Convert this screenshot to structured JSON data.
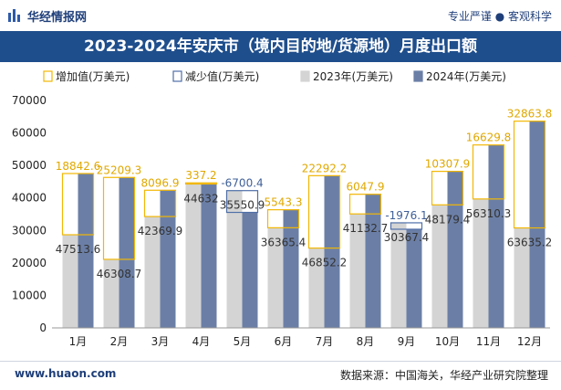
{
  "header": {
    "logo_text": "华经情报网",
    "slogan": "专业严谨 ● 客观科学"
  },
  "footer": {
    "website": "www.huaon.com",
    "source": "数据来源：中国海关，华经产业研究院整理"
  },
  "colors": {
    "increase": "#f2b705",
    "decrease": "#4f6fa8",
    "bar2023": "#d4d4d4",
    "bar2024": "#6b7fa6",
    "title_bg": "#1f4e8c"
  },
  "chart_data": {
    "type": "bar",
    "title": "2023-2024年安庆市（境内目的地/货源地）月度出口额",
    "categories": [
      "1月",
      "2月",
      "3月",
      "4月",
      "5月",
      "6月",
      "7月",
      "8月",
      "9月",
      "10月",
      "11月",
      "12月"
    ],
    "ylim": [
      0,
      70000
    ],
    "yticks": [
      0,
      10000,
      20000,
      30000,
      40000,
      50000,
      60000,
      70000
    ],
    "legend": {
      "placement": "top",
      "items": [
        "增加值(万美元)",
        "减少值(万美元)",
        "2023年(万美元)",
        "2024年(万美元)"
      ]
    },
    "series": [
      {
        "name": "2023年(万美元)",
        "values": [
          28671,
          21099,
          34273,
          44295,
          42251,
          30822,
          24560,
          35085,
          32344,
          37871,
          39681,
          30771
        ]
      },
      {
        "name": "2024年(万美元)",
        "values": [
          47513.6,
          46308.7,
          42369.9,
          44632,
          35550.9,
          36365.4,
          46852.2,
          41132.7,
          30367.4,
          48179.4,
          56310.3,
          63635.2
        ]
      }
    ],
    "change_labels": [
      "18842.6",
      "25209.3",
      "8096.9",
      "337.2",
      "-6700.4",
      "5543.3",
      "22292.2",
      "6047.9",
      "-1976.1",
      "10307.9",
      "16629.8",
      "32863.8"
    ],
    "value_labels_2024": [
      "47513.6",
      "46308.7",
      "42369.9",
      "44632",
      "35550.9",
      "36365.4",
      "46852.2",
      "41132.7",
      "30367.4",
      "48179.4",
      "56310.3",
      "63635.2"
    ],
    "grid": false
  }
}
